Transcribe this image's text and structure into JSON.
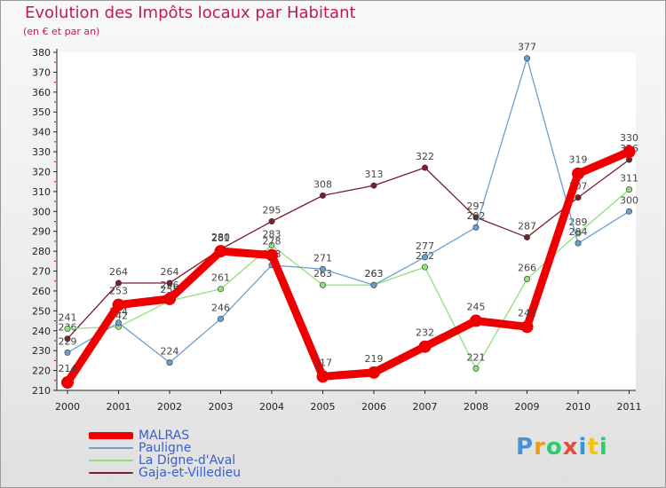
{
  "title": "Evolution des Impôts locaux par Habitant",
  "subtitle": "(en € et par an)",
  "brand": {
    "text": "Proxiti",
    "letters": [
      "P",
      "r",
      "o",
      "x",
      "i",
      "t",
      "i"
    ],
    "colors": [
      "#4a90d9",
      "#f39c12",
      "#2ecc71",
      "#e74c3c",
      "#3498db",
      "#f1c40f",
      "#2ecc71"
    ]
  },
  "chart_data": {
    "type": "line",
    "title": "Evolution des Impôts locaux par Habitant",
    "subtitle": "(en € et par an)",
    "xlabel": "",
    "ylabel": "",
    "categories": [
      "2000",
      "2001",
      "2002",
      "2003",
      "2004",
      "2005",
      "2006",
      "2007",
      "2008",
      "2009",
      "2010",
      "2011"
    ],
    "ylim": [
      210,
      380
    ],
    "yticks": [
      210,
      220,
      230,
      240,
      250,
      260,
      270,
      280,
      290,
      300,
      310,
      320,
      330,
      340,
      350,
      360,
      370,
      380
    ],
    "grid": false,
    "legend_position": "bottom-left",
    "series": [
      {
        "name": "Gaja-et-Villedieu",
        "color": "#7a1f2b",
        "values": [
          236,
          264,
          264,
          281,
          295,
          308,
          313,
          322,
          297,
          287,
          307,
          326
        ],
        "labels": [
          "236",
          "264",
          "264",
          "281",
          "295",
          "308",
          "313",
          "322",
          "297",
          "287",
          "307",
          "326"
        ]
      },
      {
        "name": "La Digne-d'Aval",
        "color": "#8fe07a",
        "values": [
          241,
          242,
          255,
          261,
          283,
          263,
          263,
          272,
          221,
          266,
          289,
          311
        ],
        "labels": [
          "241",
          "242",
          "255",
          "261",
          "283",
          "263",
          "263",
          "272",
          "221",
          "266",
          "289",
          "311"
        ]
      },
      {
        "name": "Pauligne",
        "color": "#6a9fd0",
        "values": [
          229,
          244,
          224,
          246,
          273,
          271,
          263,
          277,
          292,
          377,
          284,
          300
        ],
        "labels": [
          "229",
          "244",
          "224",
          "246",
          "273",
          "271",
          "263",
          "277",
          "292",
          "377",
          "284",
          "300"
        ]
      },
      {
        "name": "MALRAS",
        "color": "#ee0000",
        "values": [
          214,
          253,
          256,
          280,
          278,
          217,
          219,
          232,
          245,
          242,
          319,
          330
        ],
        "labels": [
          "214",
          "253",
          "256",
          "280",
          "278",
          "217",
          "219",
          "232",
          "245",
          "242",
          "319",
          "330"
        ]
      }
    ],
    "legend": [
      "MALRAS",
      "Pauligne",
      "La Digne-d'Aval",
      "Gaja-et-Villedieu"
    ]
  }
}
